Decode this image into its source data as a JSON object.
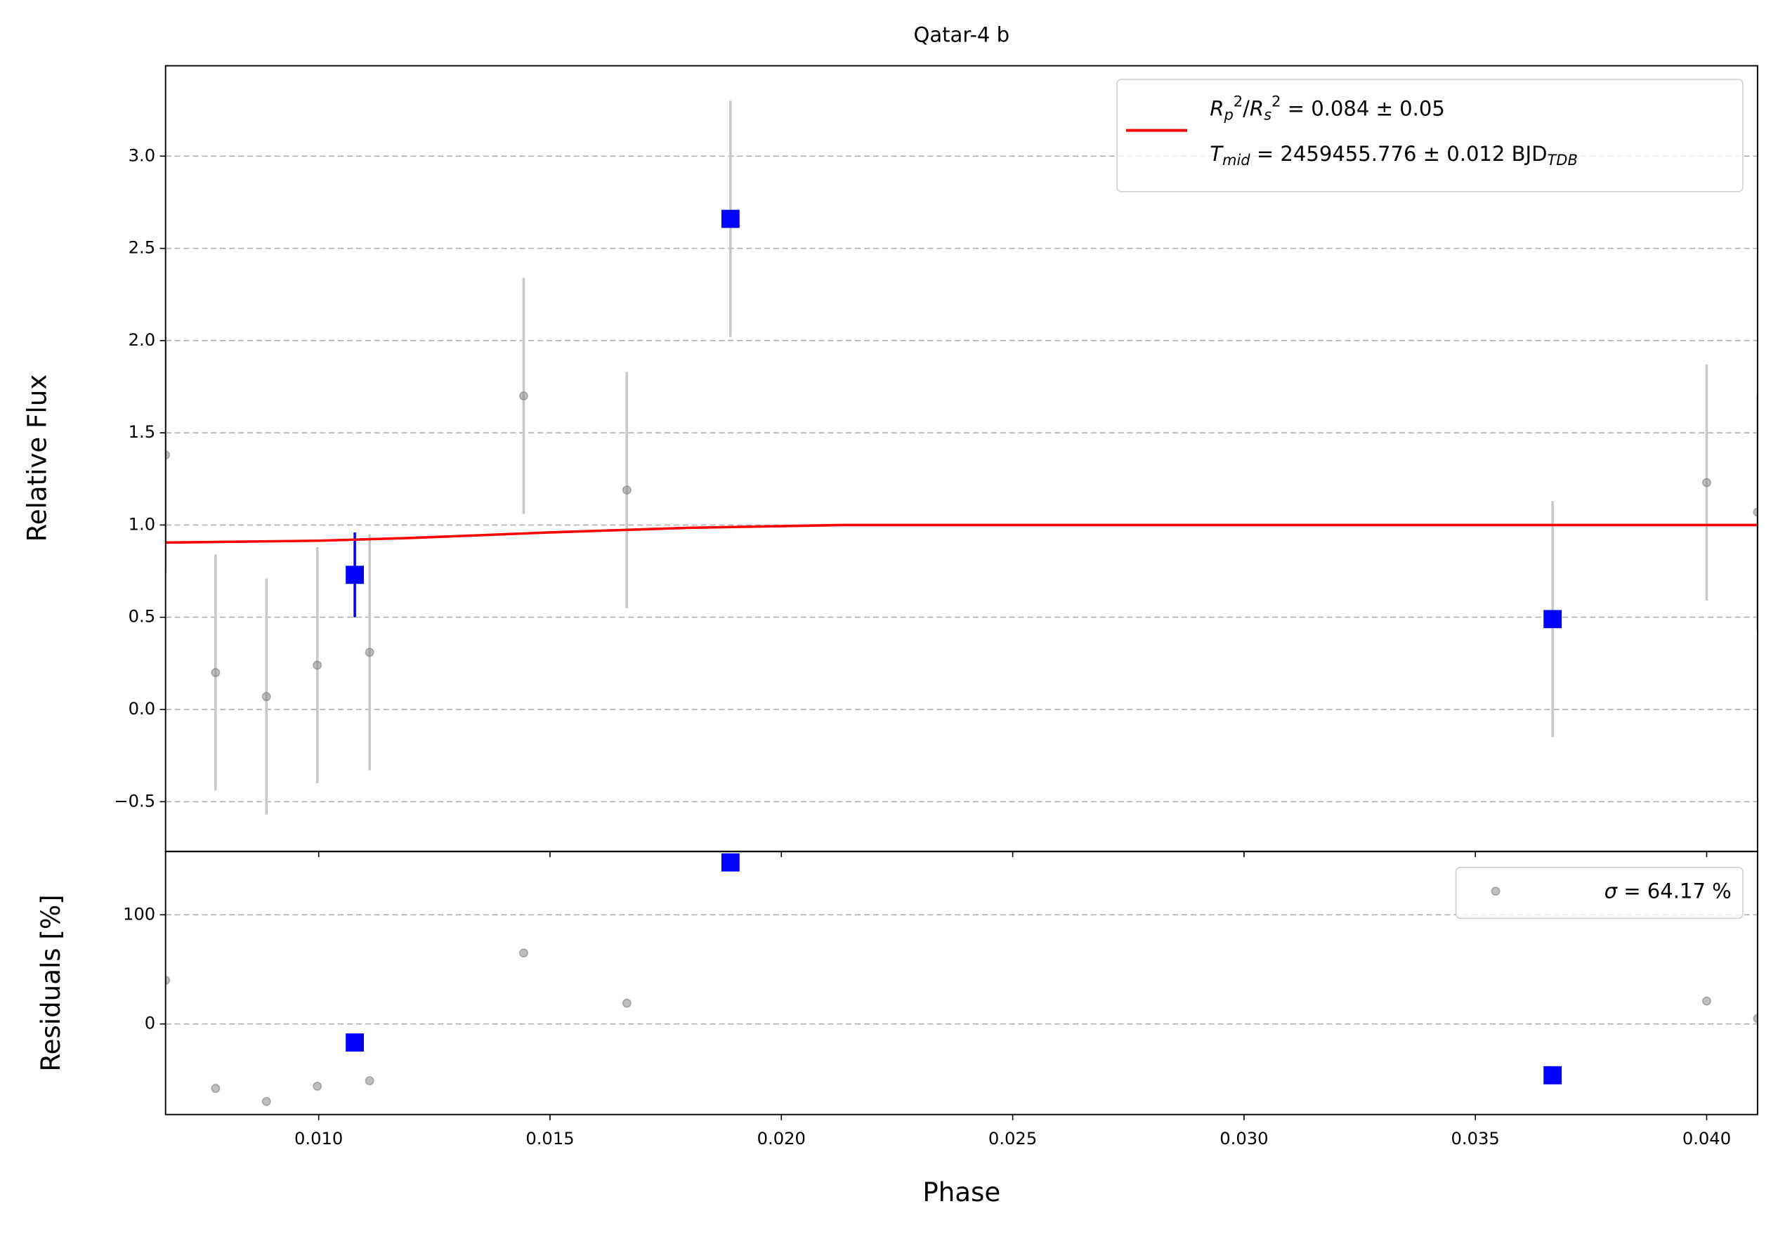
{
  "chart_data": [
    {
      "type": "scatter",
      "title": "Qatar-4 b",
      "ylabel": "Relative Flux",
      "xlim": [
        0.00669,
        0.0411
      ],
      "ylim": [
        -0.77,
        3.49
      ],
      "yticks": [
        {
          "value": -0.5,
          "label": "−0.5"
        },
        {
          "value": 0,
          "label": "0.0"
        },
        0.5,
        {
          "value": 1,
          "label": "1.0"
        },
        1.5,
        {
          "value": 2,
          "label": "2.0"
        },
        2.5,
        {
          "value": 3,
          "label": "3.0"
        }
      ],
      "grid": true,
      "legend": "upper right",
      "series": [
        {
          "type": "scatter",
          "marker": "circle",
          "color": "#808080",
          "error_colors": [
            "#c8c8c8",
            "#c8c8c8",
            "#c8c8c8",
            "#c8c8c8",
            "#c8c8c8",
            "#c8c8c8",
            "#c8c8c8",
            "#c8c8c8",
            "#c8c8c8"
          ],
          "x": [
            0.00669,
            0.00777,
            0.00887,
            0.00997,
            0.0111,
            0.01443,
            0.01666,
            0.04,
            0.0411
          ],
          "values": [
            1.38,
            0.2,
            0.07,
            0.24,
            0.31,
            1.7,
            1.19,
            1.23,
            1.07
          ],
          "errors": [
            0.64,
            0.64,
            0.64,
            0.64,
            0.64,
            0.64,
            0.64,
            0.64,
            0.64
          ]
        },
        {
          "type": "scatter",
          "marker": "square",
          "color": "#0000ff",
          "error_colors": [
            "#0000ff",
            "#c8c8c8",
            "#c8c8c8"
          ],
          "x": [
            0.01078,
            0.0189,
            0.03667
          ],
          "values": [
            0.73,
            2.66,
            0.49
          ],
          "errors": [
            0.23,
            0.64,
            0.64
          ]
        },
        {
          "type": "line",
          "color": "#ff0000",
          "name": [
            [
              {
                "text": "R",
                "italic": true
              },
              {
                "text": "p",
                "italic": true,
                "shift": "sub"
              },
              {
                "text": "2",
                "shift": "sup"
              },
              {
                "text": "/"
              },
              {
                "text": "R",
                "italic": true
              },
              {
                "text": "s",
                "italic": true,
                "shift": "sub"
              },
              {
                "text": "2",
                "shift": "sup"
              },
              {
                "text": " = 0.084 ± 0.05"
              }
            ],
            [
              {
                "text": "T",
                "italic": true
              },
              {
                "text": "mid",
                "italic": true,
                "shift": "sub"
              },
              {
                "text": " = 2459455.776 ± 0.012 BJD"
              },
              {
                "text": "TDB",
                "italic": true,
                "shift": "sub"
              }
            ]
          ],
          "x": [
            0.00669,
            0.01,
            0.012,
            0.015,
            0.018,
            0.0213,
            0.0411
          ],
          "values": [
            0.905,
            0.915,
            0.93,
            0.96,
            0.985,
            1.0,
            1.0
          ]
        }
      ]
    },
    {
      "type": "scatter",
      "ylabel": "Residuals [%]",
      "xlabel": "Phase",
      "xlim": [
        0.00669,
        0.0411
      ],
      "ylim": [
        -83,
        158
      ],
      "xticks": [
        {
          "value": 0.01,
          "label": "0.010"
        },
        0.015,
        {
          "value": 0.02,
          "label": "0.020"
        },
        0.025,
        {
          "value": 0.03,
          "label": "0.030"
        },
        0.035,
        {
          "value": 0.04,
          "label": "0.040"
        }
      ],
      "yticks": [
        0,
        100
      ],
      "grid": true,
      "legend": "upper right",
      "series": [
        {
          "type": "scatter",
          "marker": "circle",
          "color": "#808080",
          "name": [
            [
              {
                "text": "σ",
                "italic": true
              },
              {
                "text": " = 64.17 %"
              }
            ]
          ],
          "x": [
            0.00669,
            0.00777,
            0.00887,
            0.00997,
            0.0111,
            0.01443,
            0.01666,
            0.04,
            0.0411
          ],
          "values": [
            40,
            -59,
            -71,
            -57,
            -52,
            65,
            19,
            21,
            5
          ]
        },
        {
          "type": "scatter",
          "marker": "square",
          "color": "#0000ff",
          "x": [
            0.01078,
            0.0189,
            0.03667
          ],
          "values": [
            -17,
            148,
            -47
          ]
        }
      ]
    }
  ]
}
